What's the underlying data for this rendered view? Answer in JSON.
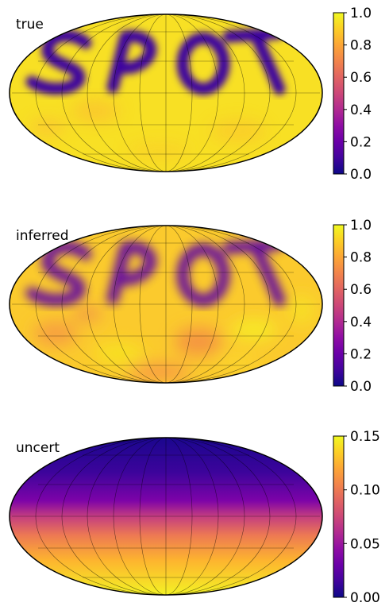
{
  "chart_data": [
    {
      "type": "heatmap",
      "label": "true",
      "projection": "mollweide",
      "colormap": "plasma",
      "colorbar": {
        "range": [
          0.0,
          1.0
        ],
        "ticks": [
          "0.0",
          "0.2",
          "0.4",
          "0.6",
          "0.8",
          "1.0"
        ]
      },
      "background_value": 0.97,
      "spot_value": 0.05,
      "text_drawn": "SPOT"
    },
    {
      "type": "heatmap",
      "label": "inferred",
      "projection": "mollweide",
      "colormap": "plasma",
      "colorbar": {
        "range": [
          0.0,
          1.0
        ],
        "ticks": [
          "0.0",
          "0.2",
          "0.4",
          "0.6",
          "0.8",
          "1.0"
        ]
      },
      "background_value": 0.92,
      "spot_value": 0.18,
      "text_drawn": "SPOT"
    },
    {
      "type": "heatmap",
      "label": "uncert",
      "projection": "mollweide",
      "colormap": "plasma",
      "colorbar": {
        "range": [
          0.0,
          0.15
        ],
        "ticks": [
          "0.00",
          "0.05",
          "0.10",
          "0.15"
        ]
      },
      "latitude_profile": {
        "north_pole": 0.003,
        "equator": 0.085,
        "south_pole": 0.145
      }
    }
  ]
}
